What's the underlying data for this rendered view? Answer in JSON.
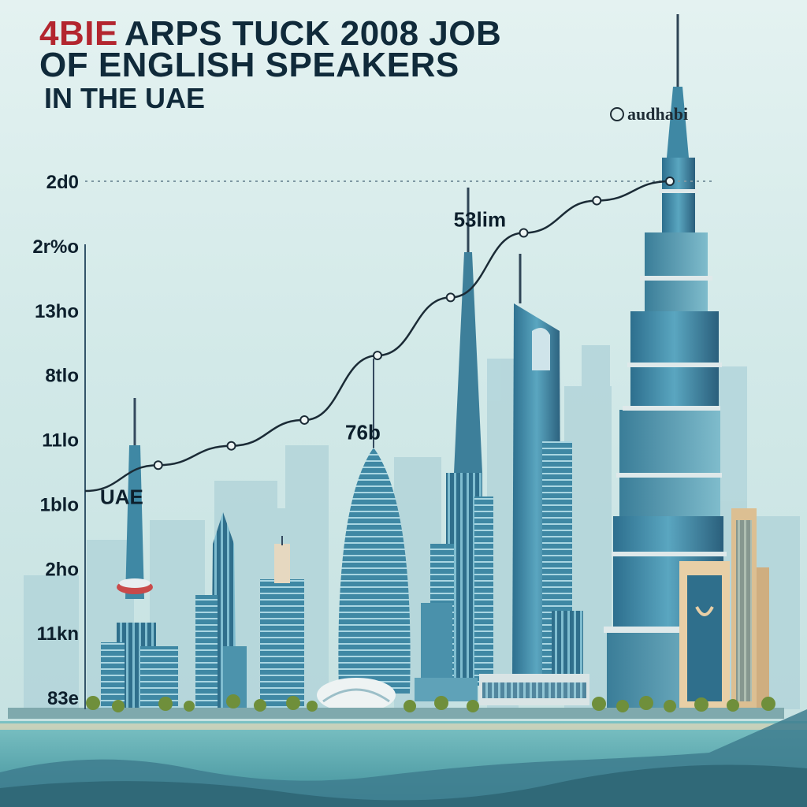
{
  "title": {
    "badge": "4BIE",
    "line1": "ARPS TUCK 2008 JOB",
    "line2": "OF ENGLISH SPEAKERS",
    "line3": "IN THE UAE"
  },
  "brand": "audhabi",
  "colors": {
    "line": "#1b2b36",
    "point_fill": "#eef5f4",
    "sea": "#5fa9b0",
    "tower": "#3f88a4"
  },
  "chart_data": {
    "type": "line",
    "title": "ARPS TUCK 2008 JOB OF ENGLISH SPEAKERS IN THE UAE",
    "xlabel": "",
    "ylabel": "",
    "y_tick_labels": [
      "83e",
      "11kn",
      "2ho",
      "1blo",
      "11lo",
      "8tlo",
      "13ho",
      "2r%o",
      "2d0"
    ],
    "ylim": [
      0,
      8
    ],
    "x": [
      0,
      1,
      2,
      3,
      4,
      5,
      6,
      7,
      8
    ],
    "values": [
      3.2,
      3.6,
      3.9,
      4.3,
      5.3,
      6.2,
      7.2,
      7.7,
      8.0
    ],
    "grid": false,
    "legend": "none",
    "annotations": [
      {
        "text": "UAE",
        "x": 0.5,
        "y": 3.0
      },
      {
        "text": "76b",
        "x": 3.8,
        "y": 4.0
      },
      {
        "text": "53lim",
        "x": 5.4,
        "y": 7.3
      }
    ]
  }
}
